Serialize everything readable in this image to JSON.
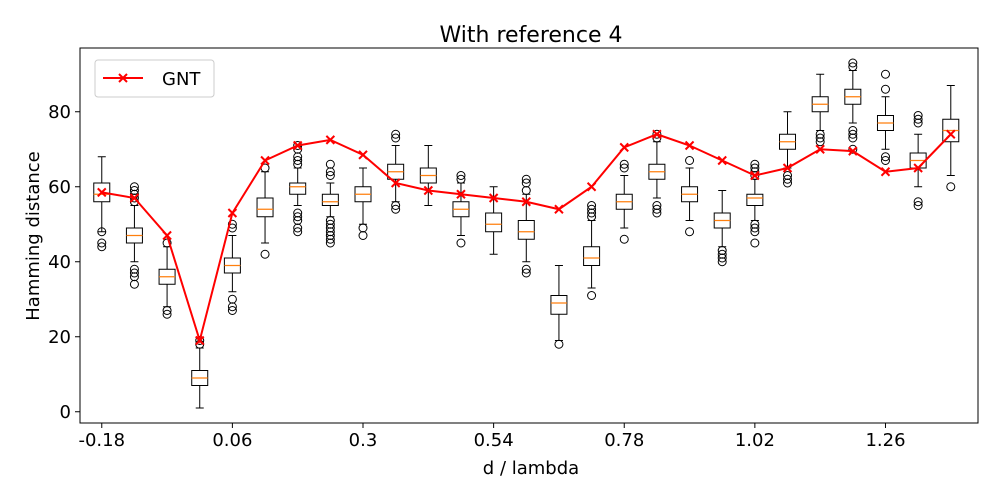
{
  "chart_data": {
    "type": "box",
    "title": "With reference 4",
    "xlabel": "d / lambda",
    "ylabel": "Hamming distance",
    "xlim": [
      -0.22,
      1.43
    ],
    "ylim": [
      -3,
      97
    ],
    "xticks": [
      -0.18,
      0.06,
      0.3,
      0.54,
      0.78,
      1.02,
      1.26
    ],
    "xtick_labels": [
      "-0.18",
      "0.06",
      "0.3",
      "0.54",
      "0.78",
      "1.02",
      "1.26"
    ],
    "yticks": [
      0,
      20,
      40,
      60,
      80
    ],
    "yticks_labels": [
      "0",
      "20",
      "40",
      "60",
      "80"
    ],
    "grid": false,
    "legend": {
      "position": "top-left",
      "entries": [
        "GNT"
      ]
    },
    "colors": {
      "box": "#000000",
      "median": "#ff7f0e",
      "line": "#ff0000"
    },
    "boxes": [
      {
        "x": -0.18,
        "q1": 56,
        "median": 58,
        "q3": 61,
        "whislo": 48,
        "whishi": 68,
        "fliers": [
          48,
          45,
          44
        ]
      },
      {
        "x": -0.12,
        "q1": 45,
        "median": 47,
        "q3": 49,
        "whislo": 40,
        "whishi": 55,
        "fliers": [
          60,
          59,
          58,
          57,
          56,
          38,
          37,
          36,
          34
        ]
      },
      {
        "x": -0.06,
        "q1": 34,
        "median": 36,
        "q3": 38,
        "whislo": 28,
        "whishi": 44,
        "fliers": [
          45,
          27,
          26
        ]
      },
      {
        "x": 0.0,
        "q1": 7,
        "median": 9,
        "q3": 11,
        "whislo": 1,
        "whishi": 17,
        "fliers": [
          19,
          18
        ]
      },
      {
        "x": 0.06,
        "q1": 37,
        "median": 39,
        "q3": 41,
        "whislo": 32,
        "whishi": 47,
        "fliers": [
          50,
          49,
          30,
          28,
          27
        ]
      },
      {
        "x": 0.12,
        "q1": 52,
        "median": 54,
        "q3": 57,
        "whislo": 45,
        "whishi": 64,
        "fliers": [
          65,
          42
        ]
      },
      {
        "x": 0.18,
        "q1": 58,
        "median": 60,
        "q3": 61,
        "whislo": 55,
        "whishi": 65,
        "fliers": [
          71,
          70,
          68,
          67,
          66,
          53,
          52,
          51,
          49,
          48
        ]
      },
      {
        "x": 0.24,
        "q1": 55,
        "median": 56,
        "q3": 58,
        "whislo": 52,
        "whishi": 61,
        "fliers": [
          66,
          64,
          63,
          51,
          50,
          49,
          48,
          47,
          46,
          45
        ]
      },
      {
        "x": 0.3,
        "q1": 56,
        "median": 58,
        "q3": 60,
        "whislo": 50,
        "whishi": 65,
        "fliers": [
          49,
          47
        ]
      },
      {
        "x": 0.36,
        "q1": 62,
        "median": 64,
        "q3": 66,
        "whislo": 56,
        "whishi": 71,
        "fliers": [
          74,
          73,
          55,
          54
        ]
      },
      {
        "x": 0.42,
        "q1": 61,
        "median": 63,
        "q3": 65,
        "whislo": 55,
        "whishi": 71,
        "fliers": []
      },
      {
        "x": 0.48,
        "q1": 52,
        "median": 54,
        "q3": 56,
        "whislo": 47,
        "whishi": 61,
        "fliers": [
          63,
          62,
          45
        ]
      },
      {
        "x": 0.54,
        "q1": 48,
        "median": 50,
        "q3": 53,
        "whislo": 42,
        "whishi": 60,
        "fliers": []
      },
      {
        "x": 0.6,
        "q1": 46,
        "median": 48,
        "q3": 51,
        "whislo": 40,
        "whishi": 58,
        "fliers": [
          62,
          61,
          59,
          38,
          37
        ]
      },
      {
        "x": 0.66,
        "q1": 26,
        "median": 29,
        "q3": 31,
        "whislo": 19,
        "whishi": 39,
        "fliers": [
          18
        ]
      },
      {
        "x": 0.72,
        "q1": 39,
        "median": 41,
        "q3": 44,
        "whislo": 33,
        "whishi": 51,
        "fliers": [
          55,
          54,
          53,
          52,
          31
        ]
      },
      {
        "x": 0.78,
        "q1": 54,
        "median": 56,
        "q3": 58,
        "whislo": 49,
        "whishi": 63,
        "fliers": [
          66,
          65,
          46
        ]
      },
      {
        "x": 0.84,
        "q1": 62,
        "median": 64,
        "q3": 66,
        "whislo": 57,
        "whishi": 72,
        "fliers": [
          74,
          73,
          55,
          54,
          53
        ]
      },
      {
        "x": 0.9,
        "q1": 56,
        "median": 58,
        "q3": 60,
        "whislo": 51,
        "whishi": 65,
        "fliers": [
          67,
          48
        ]
      },
      {
        "x": 0.96,
        "q1": 49,
        "median": 51,
        "q3": 53,
        "whislo": 44,
        "whishi": 59,
        "fliers": [
          43,
          42,
          41,
          40
        ]
      },
      {
        "x": 1.02,
        "q1": 55,
        "median": 57,
        "q3": 58,
        "whislo": 51,
        "whishi": 62,
        "fliers": [
          66,
          65,
          64,
          63,
          50,
          49,
          48,
          45
        ]
      },
      {
        "x": 1.08,
        "q1": 70,
        "median": 72,
        "q3": 74,
        "whislo": 65,
        "whishi": 80,
        "fliers": [
          63,
          62,
          61
        ]
      },
      {
        "x": 1.14,
        "q1": 80,
        "median": 82,
        "q3": 84,
        "whislo": 75,
        "whishi": 90,
        "fliers": [
          74,
          73,
          72
        ]
      },
      {
        "x": 1.2,
        "q1": 82,
        "median": 84,
        "q3": 86,
        "whislo": 77,
        "whishi": 91,
        "fliers": [
          93,
          92,
          75,
          74,
          73,
          70
        ]
      },
      {
        "x": 1.26,
        "q1": 75,
        "median": 77,
        "q3": 79,
        "whislo": 70,
        "whishi": 84,
        "fliers": [
          90,
          86,
          68,
          67
        ]
      },
      {
        "x": 1.32,
        "q1": 65,
        "median": 67,
        "q3": 69,
        "whislo": 60,
        "whishi": 74,
        "fliers": [
          79,
          78,
          77,
          56,
          55
        ]
      },
      {
        "x": 1.38,
        "q1": 72,
        "median": 75,
        "q3": 78,
        "whislo": 63,
        "whishi": 87,
        "fliers": [
          60
        ]
      }
    ],
    "series": [
      {
        "name": "GNT",
        "x": [
          -0.18,
          -0.12,
          -0.06,
          0.0,
          0.06,
          0.12,
          0.18,
          0.24,
          0.3,
          0.36,
          0.42,
          0.48,
          0.54,
          0.6,
          0.66,
          0.72,
          0.78,
          0.84,
          0.9,
          0.96,
          1.02,
          1.08,
          1.14,
          1.2,
          1.26,
          1.32,
          1.38
        ],
        "y": [
          58.5,
          57,
          47,
          19,
          53,
          67,
          71,
          72.5,
          68.5,
          61,
          59,
          58,
          57,
          56,
          54,
          60,
          70.5,
          74,
          71,
          67,
          63,
          65,
          70,
          69.5,
          64,
          65,
          74
        ]
      }
    ]
  }
}
